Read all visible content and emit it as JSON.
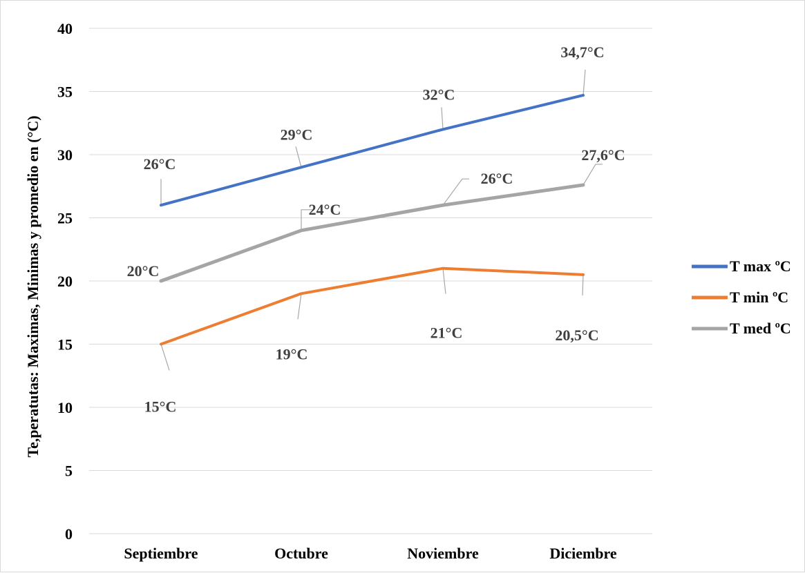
{
  "chart_data": {
    "type": "line",
    "categories": [
      "Septiembre",
      "Octubre",
      "Noviembre",
      "Diciembre"
    ],
    "series": [
      {
        "name": "T max ºC",
        "color": "#4472C4",
        "values": [
          26,
          29,
          32,
          34.7
        ],
        "labels": [
          "26°C",
          "29°C",
          "32°C",
          "34,7°C"
        ]
      },
      {
        "name": "T min ºC",
        "color": "#ED7D31",
        "values": [
          15,
          19,
          21,
          20.5
        ],
        "labels": [
          "15°C",
          "19°C",
          "21°C",
          "20,5°C"
        ]
      },
      {
        "name": "T med ºC",
        "color": "#A5A5A5",
        "values": [
          20,
          24,
          26,
          27.6
        ],
        "labels": [
          "20°C",
          "24°C",
          "26°C",
          "27,6°C"
        ]
      }
    ],
    "title": "",
    "xlabel": "",
    "ylabel": "Te,peratutas: Maximas, Minimas y promedio en (°C)",
    "ylim": [
      0,
      40
    ],
    "yticks": [
      0,
      5,
      10,
      15,
      20,
      25,
      30,
      35,
      40
    ],
    "grid": true,
    "legend_position": "right"
  }
}
